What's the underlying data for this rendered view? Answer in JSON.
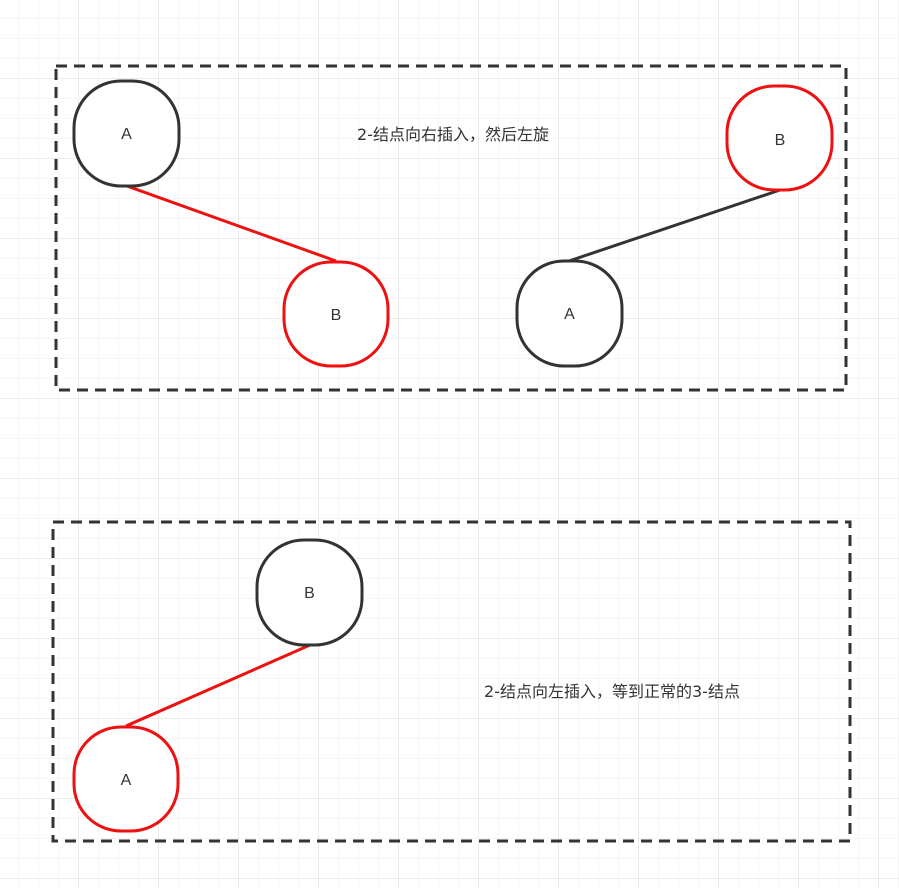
{
  "colors": {
    "black_stroke": "#333333",
    "red_stroke": "#ee1111",
    "frame_stroke": "#333333",
    "grid_line": "#ebebeb"
  },
  "panel_top": {
    "caption": "2-结点向右插入，然后左旋",
    "left_tree": {
      "parent": {
        "label": "A",
        "color": "black"
      },
      "child": {
        "label": "B",
        "color": "red"
      },
      "link_color": "red"
    },
    "right_tree": {
      "parent": {
        "label": "B",
        "color": "red"
      },
      "child": {
        "label": "A",
        "color": "black"
      },
      "link_color": "black"
    }
  },
  "panel_bottom": {
    "caption": "2-结点向左插入，等到正常的3-结点",
    "tree": {
      "parent": {
        "label": "B",
        "color": "black"
      },
      "child": {
        "label": "A",
        "color": "red"
      },
      "link_color": "red"
    }
  }
}
